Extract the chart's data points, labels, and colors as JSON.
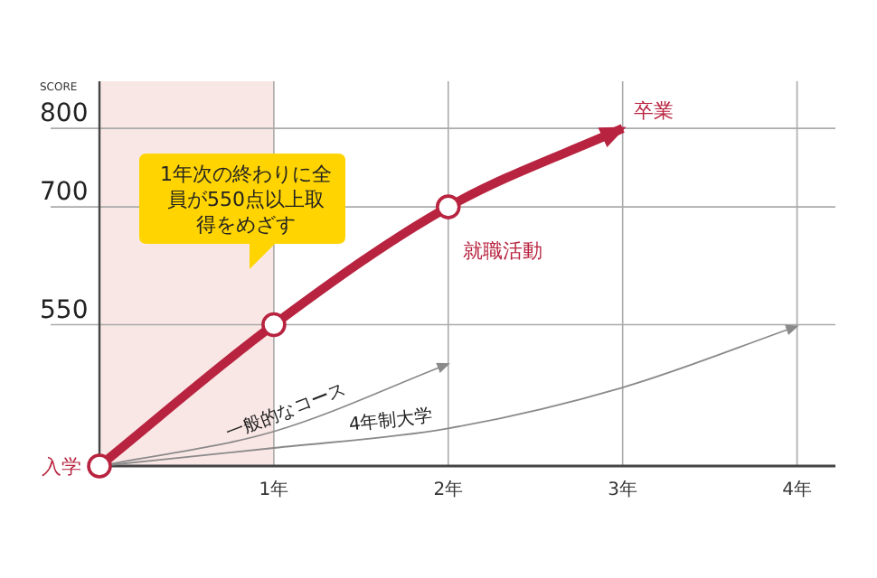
{
  "chart_data": {
    "type": "line",
    "ylabel": "SCORE",
    "x": [
      0,
      1,
      2,
      3
    ],
    "xlim": [
      0,
      4.22
    ],
    "ylim": [
      370,
      860
    ],
    "xticks": [
      {
        "value": 1,
        "label": "1年"
      },
      {
        "value": 2,
        "label": "2年"
      },
      {
        "value": 3,
        "label": "3年"
      },
      {
        "value": 4,
        "label": "4年"
      }
    ],
    "yticks": [
      550,
      700,
      800
    ],
    "grid": true,
    "series": [
      {
        "color": "#b8233f",
        "values": [
          370,
          550,
          700,
          800
        ],
        "marker": "circle"
      },
      {
        "name": "一般的なコース",
        "color": "#8a8a8a",
        "x": [
          0,
          1,
          2
        ],
        "values": [
          370,
          414,
          500
        ],
        "marker": "none"
      },
      {
        "name": "4年制大学",
        "color": "#8a8a8a",
        "x": [
          0,
          1,
          2,
          3,
          4
        ],
        "values": [
          370,
          393,
          418,
          470,
          548
        ],
        "marker": "none"
      }
    ],
    "bands": [
      {
        "axis": "x",
        "from": 0,
        "to": 1,
        "color": "#f9e7e5"
      }
    ],
    "annotations": [
      {
        "text": "入学",
        "x": 0,
        "y": 370
      },
      "1年次の終わりに全員が550点以上取得をめざす",
      {
        "text": "就職活動",
        "x": 2,
        "y": 700
      },
      {
        "text": "卒業",
        "x": 3,
        "y": 800
      }
    ]
  }
}
